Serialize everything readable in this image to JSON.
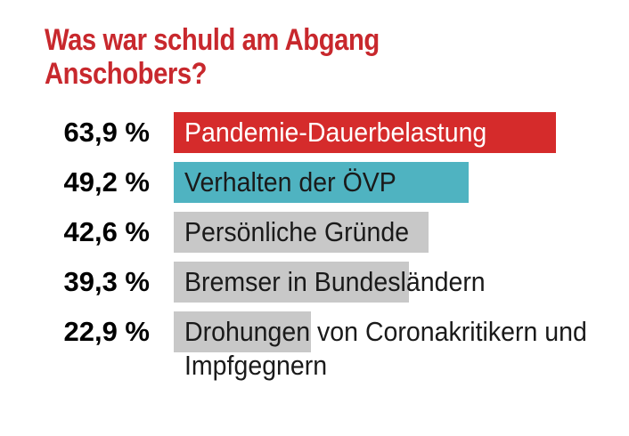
{
  "chart_data": {
    "type": "bar",
    "orientation": "horizontal",
    "title": "Was war schuld am Abgang Anschobers?",
    "categories": [
      "Pandemie-Dauerbelastung",
      "Verhalten der ÖVP",
      "Persönliche Gründe",
      "Bremser in Bundesländern",
      "Drohungen von Coronakritikern und Impfgegnern"
    ],
    "values": [
      63.9,
      49.2,
      42.6,
      39.3,
      22.9
    ],
    "value_labels": [
      "63,9 %",
      "49,2 %",
      "42,6 %",
      "39,3 %",
      "22,9 %"
    ],
    "colors": [
      "#d52b2b",
      "#4fb3c1",
      "#c8c8c8",
      "#c8c8c8",
      "#c8c8c8"
    ],
    "title_color": "#c8282d",
    "unit": "%",
    "grid": false,
    "legend": "none"
  }
}
